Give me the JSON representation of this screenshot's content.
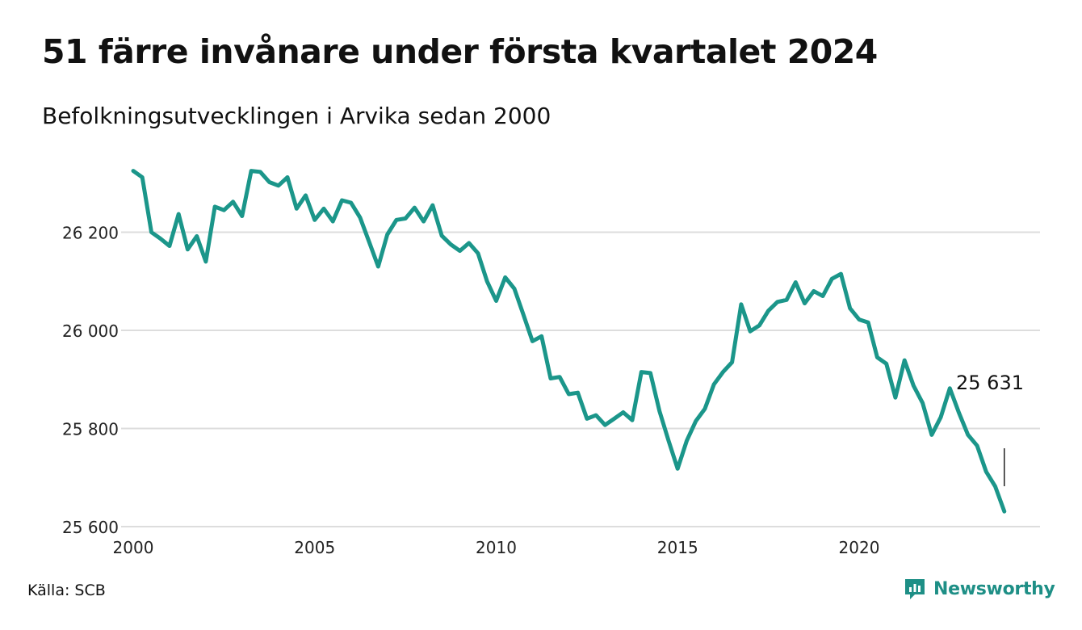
{
  "header": {
    "title": "51 färre invånare under första kvartalet 2024",
    "subtitle": "Befolkningsutvecklingen i Arvika sedan 2000"
  },
  "footer": {
    "source": "Källa: SCB",
    "brand": "Newsworthy"
  },
  "colors": {
    "line": "#1b968a",
    "grid": "#dddddd",
    "brand": "#1e8f86"
  },
  "chart_data": {
    "type": "line",
    "y_ticks": [
      25600,
      25800,
      26000,
      26200
    ],
    "y_tick_labels": [
      "25 600",
      "25 800",
      "26 000",
      "26 200"
    ],
    "x_ticks": [
      2000,
      2005,
      2010,
      2015,
      2020
    ],
    "x_tick_labels": [
      "2000",
      "2005",
      "2010",
      "2015",
      "2020"
    ],
    "ylim": [
      25600,
      26330
    ],
    "xlim": [
      2000,
      2024.25
    ],
    "grid": true,
    "annotation": {
      "label": "25 631"
    },
    "series": [
      {
        "x": [
          2000.0,
          2000.25,
          2000.5,
          2000.75,
          2001.0,
          2001.25,
          2001.5,
          2001.75,
          2002.0,
          2002.25,
          2002.5,
          2002.75,
          2003.0,
          2003.25,
          2003.5,
          2003.75,
          2004.0,
          2004.25,
          2004.5,
          2004.75,
          2005.0,
          2005.25,
          2005.5,
          2005.75,
          2006.0,
          2006.25,
          2006.5,
          2006.75,
          2007.0,
          2007.25,
          2007.5,
          2007.75,
          2008.0,
          2008.25,
          2008.5,
          2008.75,
          2009.0,
          2009.25,
          2009.5,
          2009.75,
          2010.0,
          2010.25,
          2010.5,
          2010.75,
          2011.0,
          2011.25,
          2011.5,
          2011.75,
          2012.0,
          2012.25,
          2012.5,
          2012.75,
          2013.0,
          2013.25,
          2013.5,
          2013.75,
          2014.0,
          2014.25,
          2014.5,
          2014.75,
          2015.0,
          2015.25,
          2015.5,
          2015.75,
          2016.0,
          2016.25,
          2016.5,
          2016.75,
          2017.0,
          2017.25,
          2017.5,
          2017.75,
          2018.0,
          2018.25,
          2018.5,
          2018.75,
          2019.0,
          2019.25,
          2019.5,
          2019.75,
          2020.0,
          2020.25,
          2020.5,
          2020.75,
          2021.0,
          2021.25,
          2021.5,
          2021.75,
          2022.0,
          2022.25,
          2022.5,
          2022.75,
          2023.0,
          2023.25,
          2023.5,
          2023.75,
          2024.0
        ],
        "values": [
          26325,
          26312,
          26200,
          26187,
          26172,
          26237,
          26165,
          26192,
          26140,
          26252,
          26245,
          26262,
          26233,
          26325,
          26323,
          26302,
          26295,
          26312,
          26248,
          26275,
          26225,
          26248,
          26222,
          26265,
          26260,
          26230,
          26180,
          26130,
          26195,
          26225,
          26228,
          26250,
          26222,
          26255,
          26193,
          26175,
          26162,
          26178,
          26157,
          26100,
          26060,
          26108,
          26085,
          26032,
          25978,
          25988,
          25902,
          25905,
          25870,
          25873,
          25820,
          25827,
          25807,
          25820,
          25833,
          25817,
          25915,
          25913,
          25835,
          25775,
          25718,
          25775,
          25815,
          25840,
          25890,
          25915,
          25935,
          26053,
          25998,
          26010,
          26040,
          26058,
          26062,
          26098,
          26055,
          26080,
          26070,
          26105,
          26115,
          26045,
          26022,
          26016,
          25945,
          25932,
          25863,
          25939,
          25887,
          25852,
          25787,
          25823,
          25882,
          25832,
          25787,
          25765,
          25712,
          25682,
          25631
        ]
      }
    ]
  }
}
